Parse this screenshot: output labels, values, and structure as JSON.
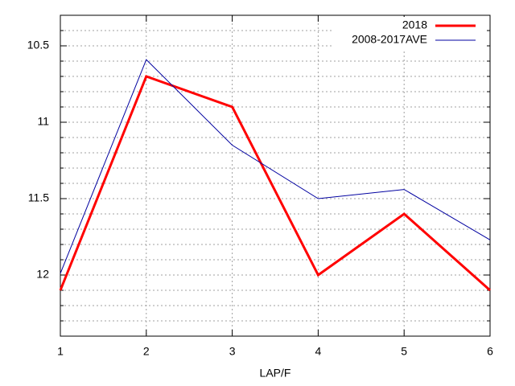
{
  "chart_data": {
    "type": "line",
    "xlabel": "LAP/F",
    "x": [
      1,
      2,
      3,
      4,
      5,
      6
    ],
    "series": [
      {
        "name": "2018",
        "color": "#ff0000",
        "values": [
          12.1,
          10.7,
          10.9,
          12.0,
          11.6,
          12.1
        ]
      },
      {
        "name": "2008-2017AVE",
        "color": "#0000a0",
        "values": [
          11.99,
          10.59,
          11.15,
          11.5,
          11.44,
          11.77
        ]
      }
    ],
    "xlim": [
      1,
      6
    ],
    "xticks": [
      1,
      2,
      3,
      4,
      5,
      6
    ],
    "ylim": [
      10.3,
      12.4
    ],
    "y_inverted": true,
    "yticks": [
      10.5,
      11,
      11.5,
      12
    ],
    "yminorticks": [
      10.4,
      10.6,
      10.7,
      10.8,
      10.9,
      11.1,
      11.2,
      11.3,
      11.4,
      11.6,
      11.7,
      11.8,
      11.9,
      12.1,
      12.2,
      12.3
    ],
    "grid": true,
    "legend": "top-right"
  }
}
